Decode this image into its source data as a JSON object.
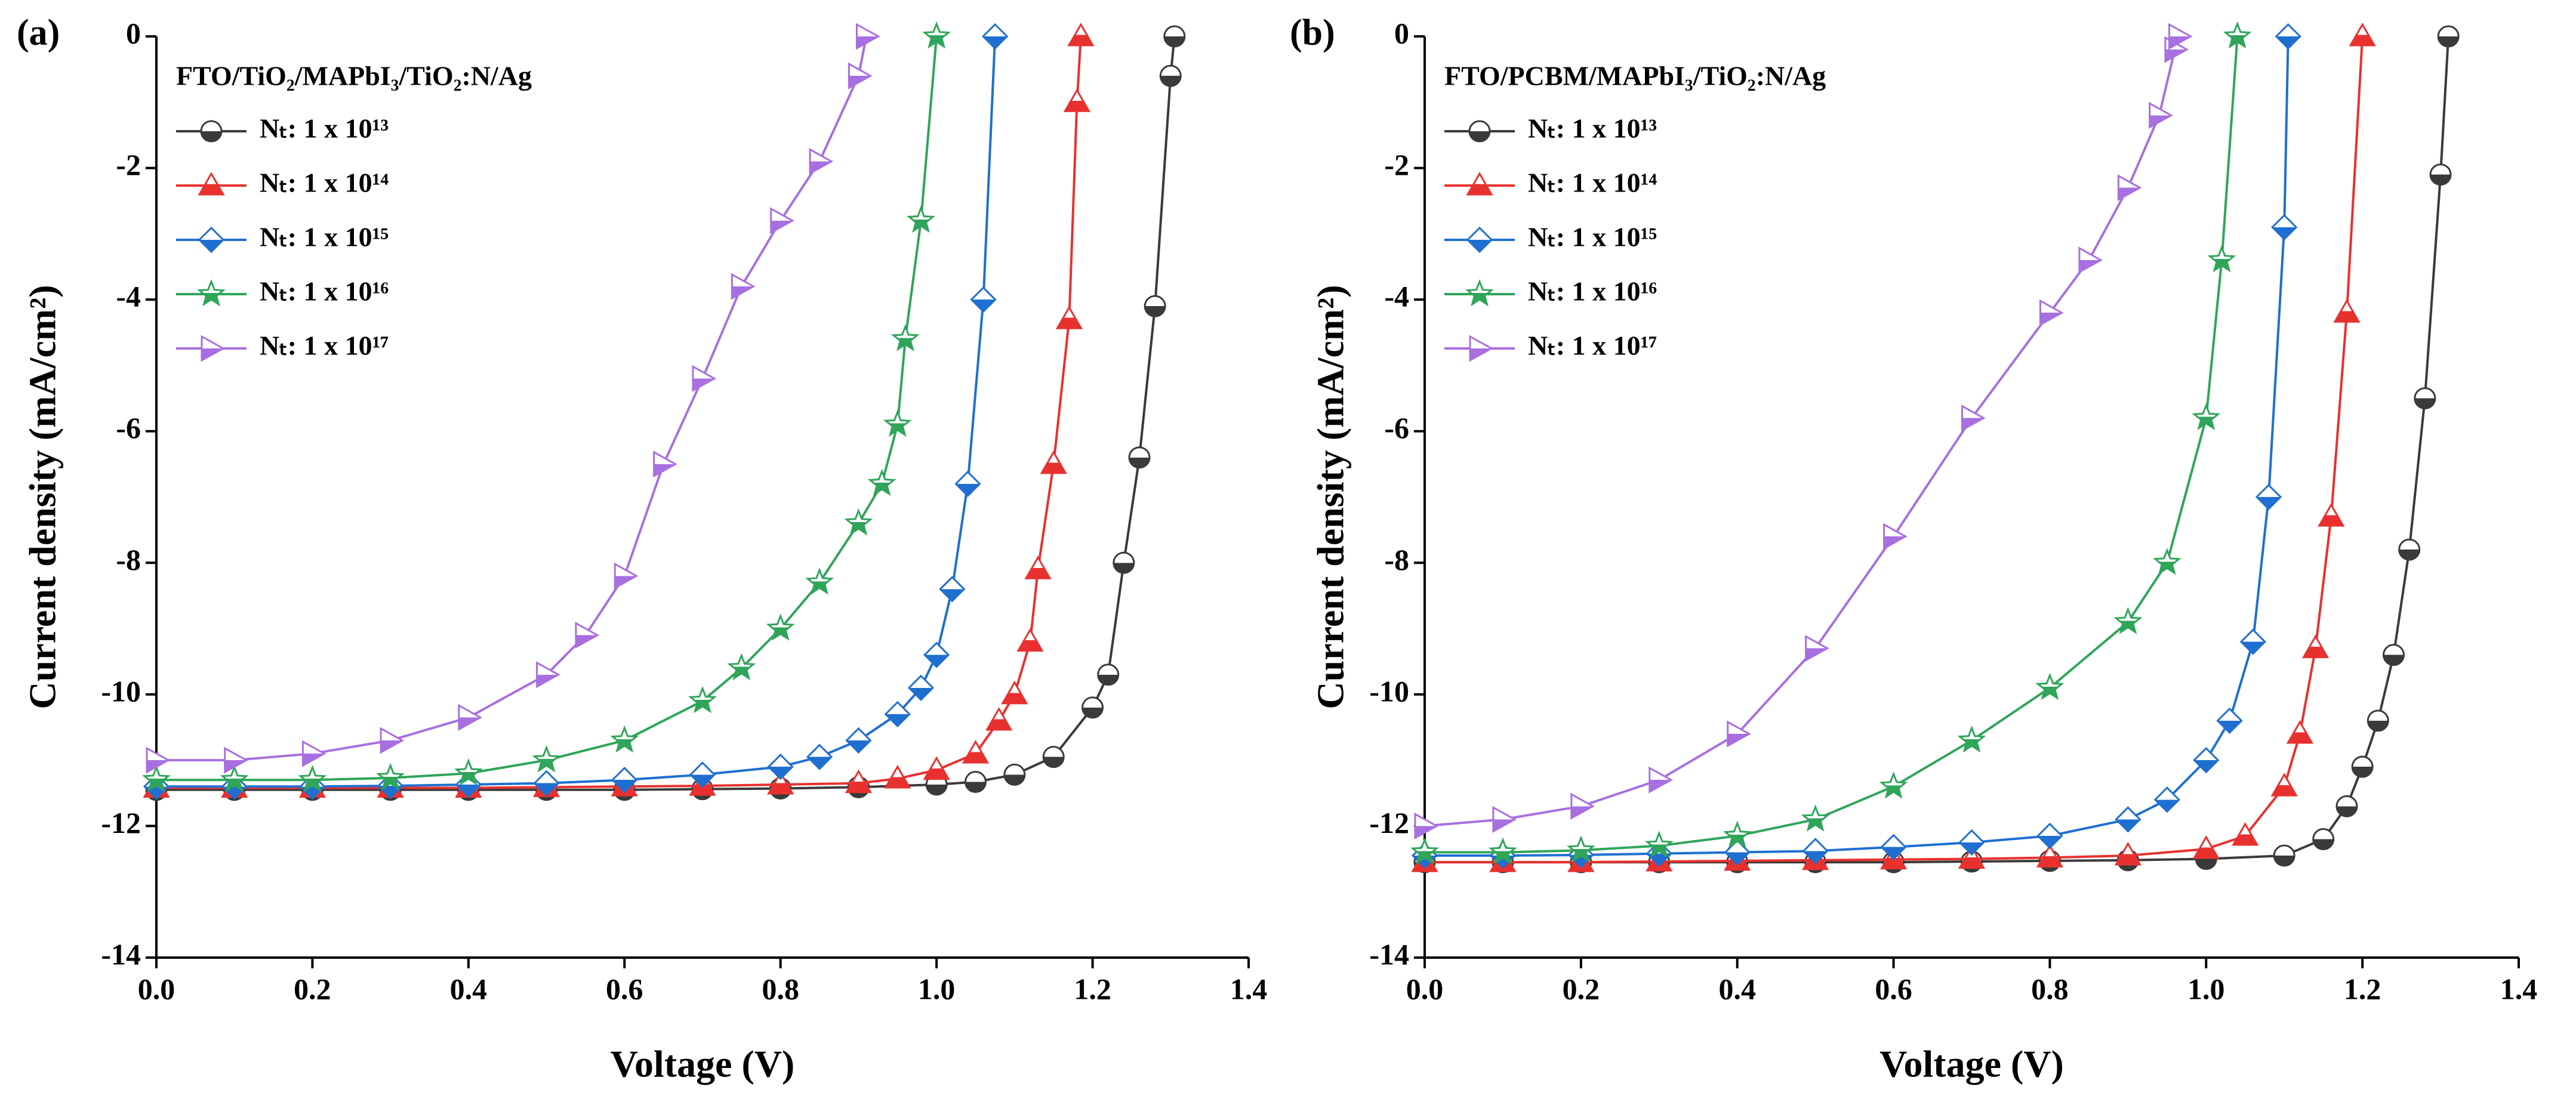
{
  "chart_data": [
    {
      "type": "line",
      "panel_label": "(a)",
      "title": "FTO/TiO₂/MAPbI₃/TiO₂:N/Ag",
      "x_label": "Voltage (V)",
      "y_label": "Current density (mA/cm²)",
      "xlim": [
        0,
        1.4
      ],
      "ylim": [
        -14,
        0
      ],
      "xticks": [
        {
          "value": 0,
          "label": "0.0"
        },
        0.2,
        0.4,
        0.6,
        0.8,
        {
          "value": 1,
          "label": "1.0"
        },
        1.2,
        1.4
      ],
      "yticks": [
        -14,
        -12,
        -10,
        -8,
        -6,
        -4,
        -2,
        0
      ],
      "legend": "upper left",
      "series": [
        {
          "name": "Nₜ: 1 x 10¹³",
          "color": "#3a3a3a",
          "marker": "circle",
          "x": [
            0,
            0.1,
            0.2,
            0.3,
            0.4,
            0.5,
            0.6,
            0.7,
            0.8,
            0.9,
            1.0,
            1.05,
            1.1,
            1.15,
            1.2,
            1.22,
            1.24,
            1.26,
            1.28,
            1.3,
            1.305
          ],
          "values": [
            -11.45,
            -11.45,
            -11.45,
            -11.45,
            -11.45,
            -11.45,
            -11.45,
            -11.44,
            -11.43,
            -11.41,
            -11.37,
            -11.33,
            -11.22,
            -10.95,
            -10.2,
            -9.7,
            -8.0,
            -6.4,
            -4.1,
            -0.6,
            0
          ]
        },
        {
          "name": "Nₜ: 1 x 10¹⁴",
          "color": "#e8312f",
          "marker": "triangle",
          "x": [
            0,
            0.1,
            0.2,
            0.3,
            0.4,
            0.5,
            0.6,
            0.7,
            0.8,
            0.9,
            0.95,
            1.0,
            1.05,
            1.08,
            1.1,
            1.12,
            1.13,
            1.15,
            1.17,
            1.18,
            1.185
          ],
          "values": [
            -11.42,
            -11.42,
            -11.42,
            -11.42,
            -11.42,
            -11.41,
            -11.4,
            -11.39,
            -11.37,
            -11.35,
            -11.28,
            -11.15,
            -10.9,
            -10.4,
            -10.0,
            -9.2,
            -8.1,
            -6.5,
            -4.3,
            -1.0,
            0
          ]
        },
        {
          "name": "Nₜ: 1 x 10¹⁵",
          "color": "#1f6fd1",
          "marker": "diamond",
          "x": [
            0,
            0.1,
            0.2,
            0.3,
            0.4,
            0.5,
            0.6,
            0.7,
            0.8,
            0.85,
            0.9,
            0.95,
            0.98,
            1.0,
            1.02,
            1.04,
            1.06,
            1.075
          ],
          "values": [
            -11.4,
            -11.4,
            -11.4,
            -11.39,
            -11.37,
            -11.35,
            -11.3,
            -11.22,
            -11.1,
            -10.95,
            -10.7,
            -10.3,
            -9.9,
            -9.4,
            -8.4,
            -6.8,
            -4.0,
            0
          ]
        },
        {
          "name": "Nₜ: 1 x 10¹⁶",
          "color": "#2fa55a",
          "marker": "star",
          "x": [
            0,
            0.1,
            0.2,
            0.3,
            0.4,
            0.5,
            0.6,
            0.7,
            0.75,
            0.8,
            0.85,
            0.9,
            0.93,
            0.95,
            0.96,
            0.98,
            1.0
          ],
          "values": [
            -11.3,
            -11.3,
            -11.3,
            -11.27,
            -11.2,
            -11.0,
            -10.7,
            -10.1,
            -9.6,
            -9.0,
            -8.3,
            -7.4,
            -6.8,
            -5.9,
            -4.6,
            -2.8,
            0
          ]
        },
        {
          "name": "Nₜ: 1 x 10¹⁷",
          "color": "#a86fe0",
          "marker": "right",
          "x": [
            0,
            0.1,
            0.2,
            0.3,
            0.4,
            0.5,
            0.55,
            0.6,
            0.65,
            0.7,
            0.75,
            0.8,
            0.85,
            0.9,
            0.91
          ],
          "values": [
            -11.0,
            -11.0,
            -10.9,
            -10.7,
            -10.35,
            -9.7,
            -9.1,
            -8.2,
            -6.5,
            -5.2,
            -3.8,
            -2.8,
            -1.9,
            -0.6,
            0
          ]
        }
      ]
    },
    {
      "type": "line",
      "panel_label": "(b)",
      "title": "FTO/PCBM/MAPbI₃/TiO₂:N/Ag",
      "x_label": "Voltage (V)",
      "y_label": "Current density (mA/cm²)",
      "xlim": [
        0,
        1.4
      ],
      "ylim": [
        -14,
        0
      ],
      "xticks": [
        {
          "value": 0,
          "label": "0.0"
        },
        0.2,
        0.4,
        0.6,
        0.8,
        {
          "value": 1,
          "label": "1.0"
        },
        1.2,
        1.4
      ],
      "yticks": [
        -14,
        -12,
        -10,
        -8,
        -6,
        -4,
        -2,
        0
      ],
      "legend": "upper left",
      "series": [
        {
          "name": "Nₜ: 1 x 10¹³",
          "color": "#3a3a3a",
          "marker": "circle",
          "x": [
            0,
            0.1,
            0.2,
            0.3,
            0.4,
            0.5,
            0.6,
            0.7,
            0.8,
            0.9,
            1.0,
            1.1,
            1.15,
            1.18,
            1.2,
            1.22,
            1.24,
            1.26,
            1.28,
            1.3,
            1.31
          ],
          "values": [
            -12.55,
            -12.55,
            -12.55,
            -12.55,
            -12.55,
            -12.55,
            -12.55,
            -12.54,
            -12.53,
            -12.52,
            -12.5,
            -12.45,
            -12.2,
            -11.7,
            -11.1,
            -10.4,
            -9.4,
            -7.8,
            -5.5,
            -2.1,
            0
          ]
        },
        {
          "name": "Nₜ: 1 x 10¹⁴",
          "color": "#e8312f",
          "marker": "triangle",
          "x": [
            0,
            0.1,
            0.2,
            0.3,
            0.4,
            0.5,
            0.6,
            0.7,
            0.8,
            0.9,
            1.0,
            1.05,
            1.1,
            1.12,
            1.14,
            1.16,
            1.18,
            1.2
          ],
          "values": [
            -12.55,
            -12.55,
            -12.55,
            -12.54,
            -12.53,
            -12.52,
            -12.51,
            -12.5,
            -12.48,
            -12.45,
            -12.35,
            -12.15,
            -11.4,
            -10.6,
            -9.3,
            -7.3,
            -4.2,
            0
          ]
        },
        {
          "name": "Nₜ: 1 x 10¹⁵",
          "color": "#1f6fd1",
          "marker": "diamond",
          "x": [
            0,
            0.1,
            0.2,
            0.3,
            0.4,
            0.5,
            0.6,
            0.7,
            0.8,
            0.9,
            0.95,
            1.0,
            1.03,
            1.06,
            1.08,
            1.1,
            1.105
          ],
          "values": [
            -12.45,
            -12.45,
            -12.44,
            -12.42,
            -12.4,
            -12.38,
            -12.32,
            -12.25,
            -12.15,
            -11.9,
            -11.6,
            -11.0,
            -10.4,
            -9.2,
            -7.0,
            -2.9,
            0
          ]
        },
        {
          "name": "Nₜ: 1 x 10¹⁶",
          "color": "#2fa55a",
          "marker": "star",
          "x": [
            0,
            0.1,
            0.2,
            0.3,
            0.4,
            0.5,
            0.6,
            0.7,
            0.8,
            0.9,
            0.95,
            1.0,
            1.02,
            1.04
          ],
          "values": [
            -12.4,
            -12.4,
            -12.37,
            -12.3,
            -12.15,
            -11.9,
            -11.4,
            -10.7,
            -9.9,
            -8.9,
            -8.0,
            -5.8,
            -3.4,
            0
          ]
        },
        {
          "name": "Nₜ: 1 x 10¹⁷",
          "color": "#a86fe0",
          "marker": "right",
          "x": [
            0,
            0.1,
            0.2,
            0.3,
            0.4,
            0.5,
            0.6,
            0.7,
            0.8,
            0.85,
            0.9,
            0.94,
            0.96,
            0.965
          ],
          "values": [
            -12.0,
            -11.9,
            -11.7,
            -11.3,
            -10.6,
            -9.3,
            -7.6,
            -5.8,
            -4.2,
            -3.4,
            -2.3,
            -1.2,
            -0.2,
            0
          ]
        }
      ]
    }
  ]
}
